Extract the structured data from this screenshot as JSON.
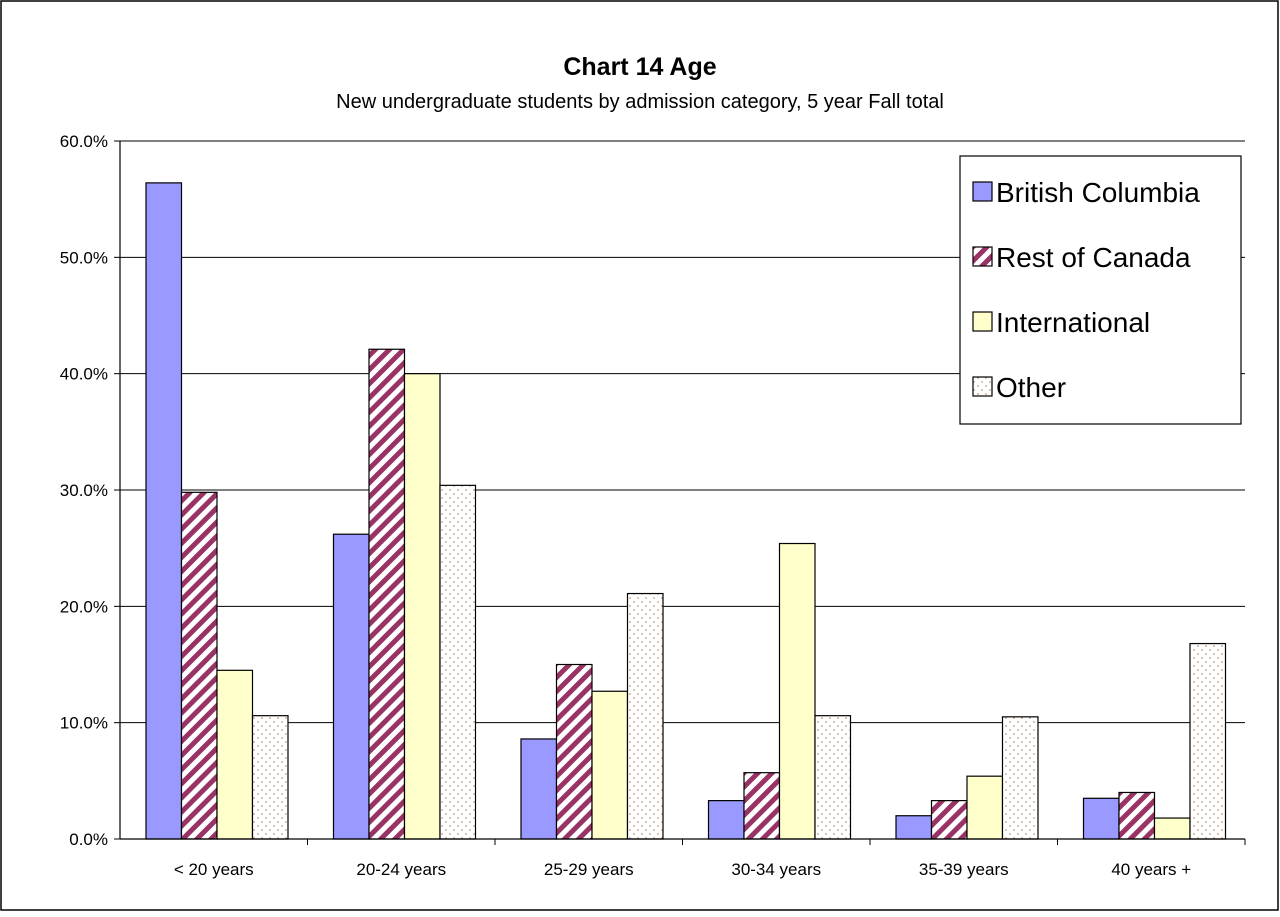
{
  "chart_data": {
    "type": "bar",
    "title": "Chart 14  Age",
    "subtitle": "New undergraduate students by admission category, 5 year Fall total",
    "xlabel": "",
    "ylabel": "",
    "ylim": [
      0,
      60
    ],
    "yticks": [
      "0.0%",
      "10.0%",
      "20.0%",
      "30.0%",
      "40.0%",
      "50.0%",
      "60.0%"
    ],
    "grid": true,
    "legend_position": "top-right",
    "categories": [
      "< 20 years",
      "20-24 years",
      "25-29 years",
      "30-34 years",
      "35-39 years",
      "40 years +"
    ],
    "series": [
      {
        "name": "British Columbia",
        "color": "#9999ff",
        "pattern": "solid",
        "values": [
          56.4,
          26.2,
          8.6,
          3.3,
          2.0,
          3.5
        ]
      },
      {
        "name": "Rest of Canada",
        "color": "#993366",
        "pattern": "diagonal-stripes",
        "values": [
          29.8,
          42.1,
          15.0,
          5.7,
          3.3,
          4.0
        ]
      },
      {
        "name": "International",
        "color": "#ffffcc",
        "pattern": "solid",
        "values": [
          14.5,
          40.0,
          12.7,
          25.4,
          5.4,
          1.8
        ]
      },
      {
        "name": "Other",
        "color": "#cc9977",
        "pattern": "dots",
        "values": [
          10.6,
          30.4,
          21.1,
          10.6,
          10.5,
          16.8
        ]
      }
    ]
  }
}
